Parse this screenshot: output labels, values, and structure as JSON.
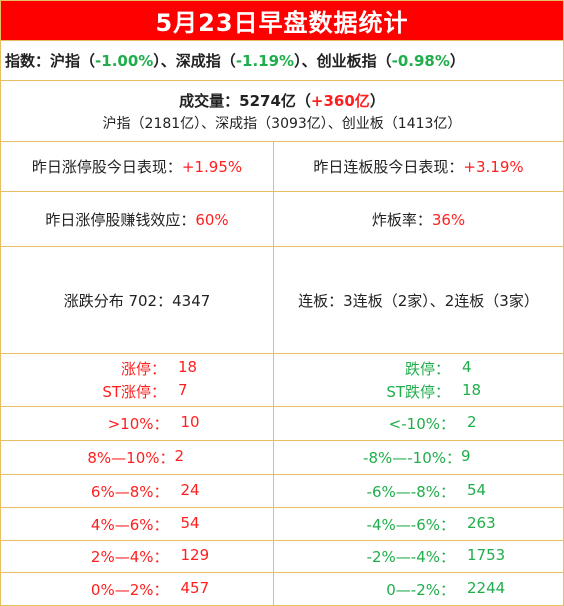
{
  "title": "5月23日早盘数据统计",
  "index": {
    "label": "指数：",
    "sh_name": "沪指（",
    "sh_value": "-1.00%",
    "sz_name": "）、深成指（",
    "sz_value": "-1.19%",
    "cy_name": "）、创业板指（",
    "cy_value": "-0.98%",
    "end": "）"
  },
  "volume": {
    "label": "成交量：5274亿（",
    "delta": "+360亿",
    "end": "）",
    "breakdown": "沪指（2181亿）、深成指（3093亿）、创业板（1413亿）"
  },
  "stats": [
    {
      "left_label": "昨日涨停股今日表现：",
      "left_value": "+1.95%",
      "right_label": "昨日连板股今日表现：",
      "right_value": "+3.19%"
    },
    {
      "left_label": "昨日涨停股赚钱效应：",
      "left_value": "60%",
      "right_label": "炸板率：",
      "right_value": "36%"
    }
  ],
  "distribution": {
    "left": "涨跌分布 702：4347",
    "right": "连板：3连板（2家）、2连板（3家）"
  },
  "limits": {
    "up_label": "涨停：",
    "up_value": "18",
    "st_up_label": "ST涨停：",
    "st_up_value": "7",
    "down_label": "跌停：",
    "down_value": "4",
    "st_down_label": "ST跌停：",
    "st_down_value": "18"
  },
  "buckets": [
    {
      "up_label": ">10%：",
      "up_value": "10",
      "down_label": "<-10%：",
      "down_value": "2"
    },
    {
      "up_label": "8%—10%：",
      "up_value": "2",
      "down_label": "-8%—-10%：",
      "down_value": "9"
    },
    {
      "up_label": "6%—8%：",
      "up_value": "24",
      "down_label": "-6%—-8%：",
      "down_value": "54"
    },
    {
      "up_label": "4%—6%：",
      "up_value": "54",
      "down_label": "-4%—-6%：",
      "down_value": "263"
    },
    {
      "up_label": "2%—4%：",
      "up_value": "129",
      "down_label": "-2%—-4%：",
      "down_value": "1753"
    },
    {
      "up_label": "0%—2%：",
      "up_value": "457",
      "down_label": "0—-2%：",
      "down_value": "2244"
    }
  ],
  "colors": {
    "header_bg": "#ff0000",
    "up": "#ff1f1f",
    "down": "#1fae4b",
    "grid": "#e6c060"
  }
}
